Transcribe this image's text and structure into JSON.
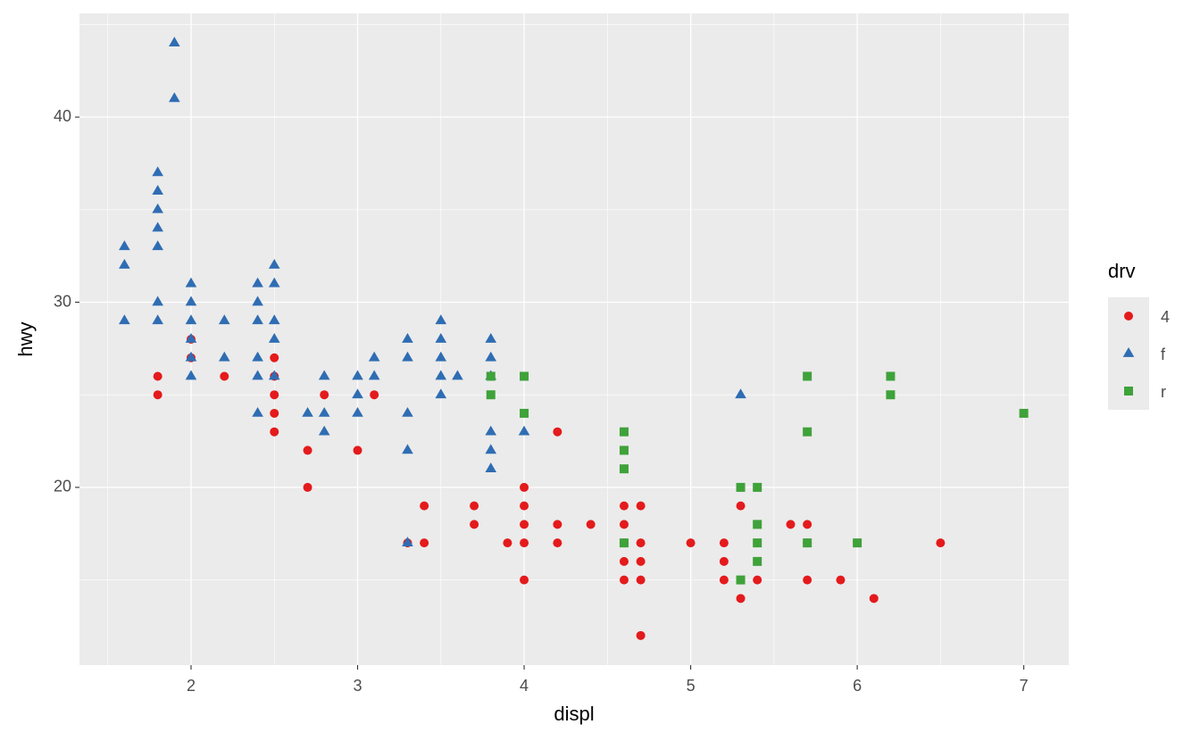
{
  "chart_data": {
    "type": "scatter",
    "x_label": "displ",
    "y_label": "hwy",
    "legend_title": "drv",
    "legend_position": "right",
    "grid": true,
    "background": "#ebebeb",
    "xlim": [
      1.33,
      7.27
    ],
    "xticks": [
      2,
      3,
      4,
      5,
      6,
      7
    ],
    "ylim": [
      10.4,
      45.6
    ],
    "yticks": [
      20,
      30,
      40
    ],
    "series": [
      {
        "name": "4",
        "color": "#e41a1c",
        "shape": "circle",
        "x": [
          1.8,
          1.8,
          2.0,
          2.0,
          2.2,
          2.5,
          2.5,
          2.5,
          2.5,
          2.5,
          2.7,
          2.7,
          2.8,
          3.0,
          3.1,
          3.3,
          3.4,
          3.4,
          3.7,
          3.7,
          3.9,
          4.0,
          4.0,
          4.0,
          4.0,
          4.0,
          4.2,
          4.2,
          4.2,
          4.4,
          4.6,
          4.6,
          4.6,
          4.6,
          4.6,
          4.7,
          4.7,
          4.7,
          4.7,
          4.7,
          5.0,
          5.2,
          5.2,
          5.2,
          5.3,
          5.3,
          5.4,
          5.6,
          5.7,
          5.7,
          5.7,
          5.9,
          6.1,
          6.5
        ],
        "values": [
          26,
          25,
          28,
          27,
          26,
          27,
          26,
          25,
          24,
          23,
          22,
          20,
          25,
          22,
          25,
          17,
          19,
          17,
          19,
          18,
          17,
          20,
          19,
          18,
          17,
          15,
          23,
          18,
          17,
          18,
          19,
          18,
          17,
          16,
          15,
          19,
          17,
          16,
          15,
          12,
          17,
          17,
          16,
          15,
          19,
          14,
          15,
          18,
          18,
          17,
          15,
          15,
          14,
          17
        ]
      },
      {
        "name": "f",
        "color": "#2f6db3",
        "shape": "triangle",
        "x": [
          1.6,
          1.6,
          1.6,
          1.8,
          1.8,
          1.8,
          1.8,
          1.8,
          1.8,
          1.8,
          1.9,
          1.9,
          2.0,
          2.0,
          2.0,
          2.0,
          2.0,
          2.0,
          2.2,
          2.2,
          2.4,
          2.4,
          2.4,
          2.4,
          2.4,
          2.4,
          2.5,
          2.5,
          2.5,
          2.5,
          2.5,
          2.7,
          2.8,
          2.8,
          2.8,
          3.0,
          3.0,
          3.0,
          3.1,
          3.1,
          3.3,
          3.3,
          3.3,
          3.3,
          3.3,
          3.5,
          3.5,
          3.5,
          3.5,
          3.5,
          3.6,
          3.8,
          3.8,
          3.8,
          3.8,
          3.8,
          3.8,
          4.0,
          5.3
        ],
        "values": [
          33,
          32,
          29,
          37,
          36,
          35,
          34,
          33,
          30,
          29,
          44,
          41,
          31,
          30,
          29,
          28,
          27,
          26,
          29,
          27,
          31,
          30,
          29,
          27,
          26,
          24,
          32,
          31,
          29,
          28,
          26,
          24,
          26,
          24,
          23,
          26,
          25,
          24,
          27,
          26,
          28,
          27,
          24,
          22,
          17,
          29,
          28,
          27,
          26,
          25,
          26,
          28,
          27,
          26,
          23,
          22,
          21,
          23,
          25
        ]
      },
      {
        "name": "r",
        "color": "#3fa23a",
        "shape": "square",
        "x": [
          3.8,
          3.8,
          4.0,
          4.0,
          4.6,
          4.6,
          4.6,
          4.6,
          5.3,
          5.3,
          5.4,
          5.4,
          5.4,
          5.4,
          5.7,
          5.7,
          5.7,
          6.0,
          6.2,
          6.2,
          7.0
        ],
        "values": [
          26,
          25,
          26,
          24,
          23,
          22,
          21,
          17,
          20,
          15,
          20,
          18,
          17,
          16,
          26,
          23,
          17,
          17,
          26,
          25,
          24
        ]
      }
    ]
  }
}
